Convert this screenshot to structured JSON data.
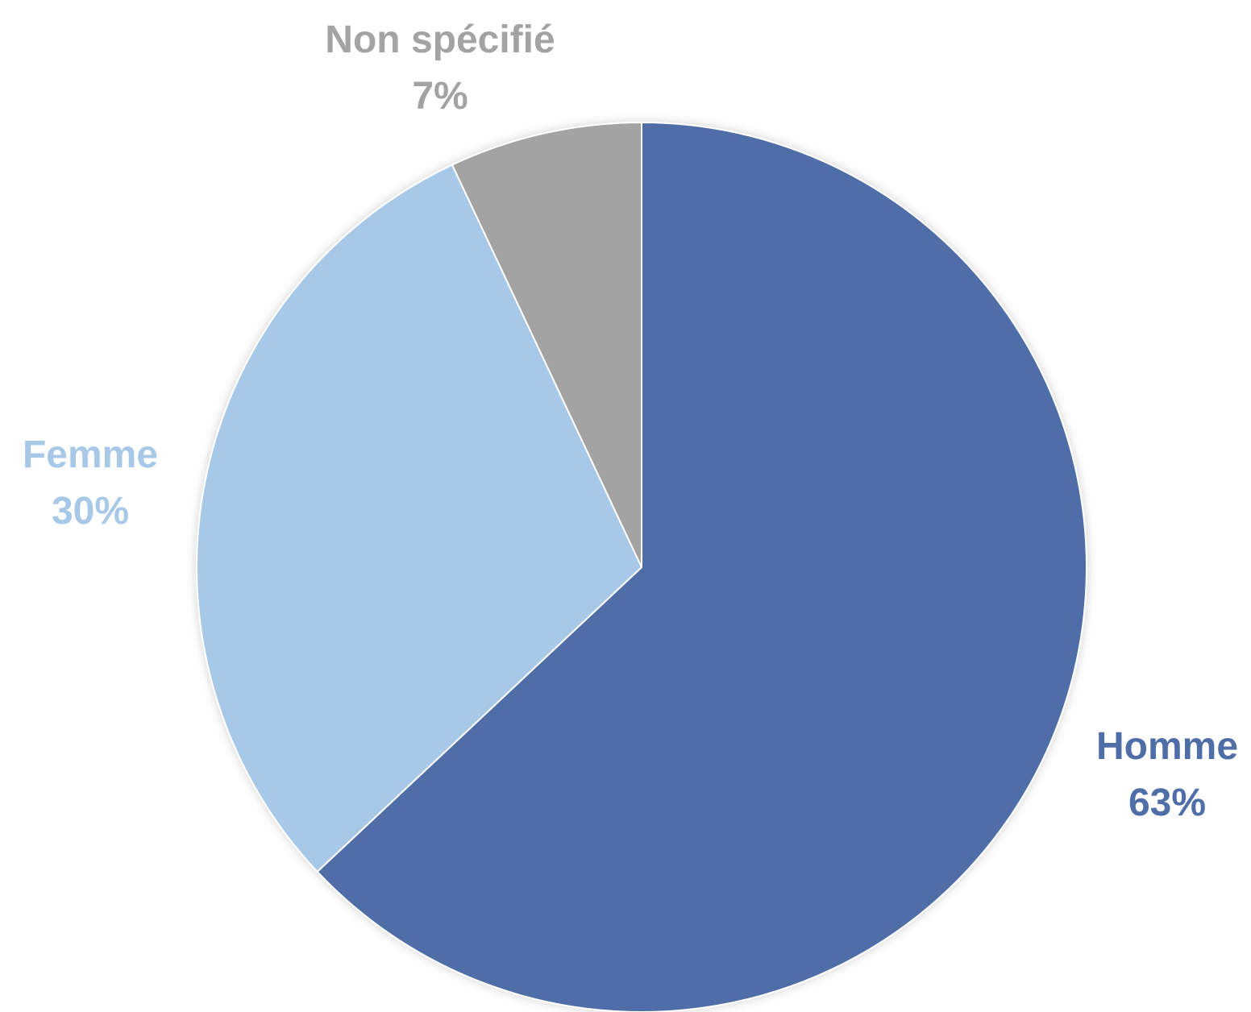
{
  "chart_data": {
    "type": "pie",
    "title": "",
    "start_angle_deg": 0,
    "direction": "clockwise",
    "slices": [
      {
        "label": "Homme",
        "value": 63,
        "value_label": "63%",
        "color": "#4f6ea8"
      },
      {
        "label": "Femme",
        "value": 30,
        "value_label": "30%",
        "color": "#a8c8e8"
      },
      {
        "label": "Non spécifié",
        "value": 7,
        "value_label": "7%",
        "color": "#a3a3a3"
      }
    ],
    "legend": "none",
    "labels_outside": true
  }
}
